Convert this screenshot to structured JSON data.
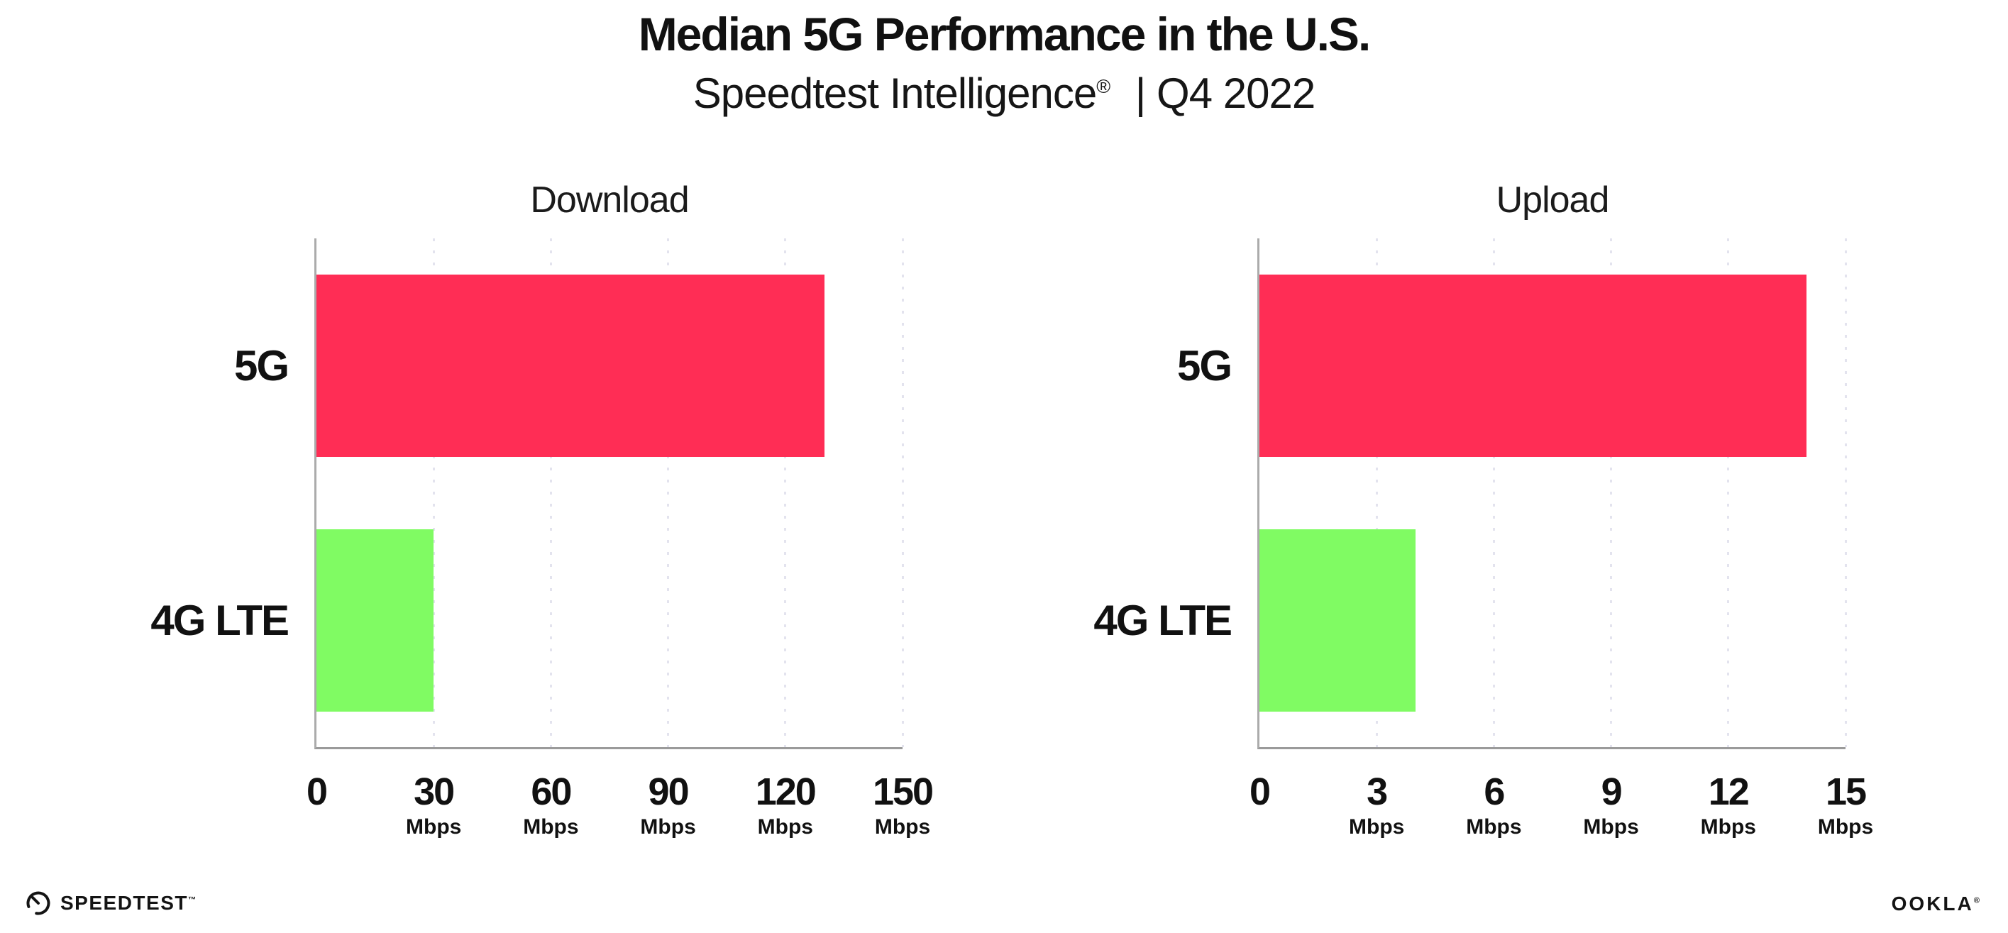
{
  "header": {
    "title": "Median 5G Performance in the U.S.",
    "subtitle_brand": "Speedtest Intelligence",
    "subtitle_reg": "®",
    "subtitle_rest": "| Q4 2022"
  },
  "colors": {
    "bar_5g": "#FF2D55",
    "bar_4g_lte": "#80FB63",
    "gridline": "#E3E3EE",
    "axis": "#ABABAB",
    "text": "#111111"
  },
  "chart_data": [
    {
      "type": "bar",
      "orientation": "horizontal",
      "title": "Download",
      "categories": [
        "5G",
        "4G LTE"
      ],
      "values": [
        130,
        30
      ],
      "unit": "Mbps",
      "xlim": [
        0,
        150
      ],
      "xticks": [
        0,
        30,
        60,
        90,
        120,
        150
      ],
      "xtick_labels": [
        {
          "num": "0",
          "unit": ""
        },
        {
          "num": "30",
          "unit": "Mbps"
        },
        {
          "num": "60",
          "unit": "Mbps"
        },
        {
          "num": "90",
          "unit": "Mbps"
        },
        {
          "num": "120",
          "unit": "Mbps"
        },
        {
          "num": "150",
          "unit": "Mbps"
        }
      ],
      "bar_colors": [
        "#FF2D55",
        "#80FB63"
      ],
      "grid": "vertical-dotted",
      "legend": "none"
    },
    {
      "type": "bar",
      "orientation": "horizontal",
      "title": "Upload",
      "categories": [
        "5G",
        "4G LTE"
      ],
      "values": [
        14,
        4
      ],
      "unit": "Mbps",
      "xlim": [
        0,
        15
      ],
      "xticks": [
        0,
        3,
        6,
        9,
        12,
        15
      ],
      "xtick_labels": [
        {
          "num": "0",
          "unit": ""
        },
        {
          "num": "3",
          "unit": "Mbps"
        },
        {
          "num": "6",
          "unit": "Mbps"
        },
        {
          "num": "9",
          "unit": "Mbps"
        },
        {
          "num": "12",
          "unit": "Mbps"
        },
        {
          "num": "15",
          "unit": "Mbps"
        }
      ],
      "bar_colors": [
        "#FF2D55",
        "#80FB63"
      ],
      "grid": "vertical-dotted",
      "legend": "none"
    }
  ],
  "footer": {
    "speedtest": "SPEEDTEST",
    "speedtest_mark": "™",
    "ookla": "OOKLA",
    "ookla_mark": "®"
  }
}
